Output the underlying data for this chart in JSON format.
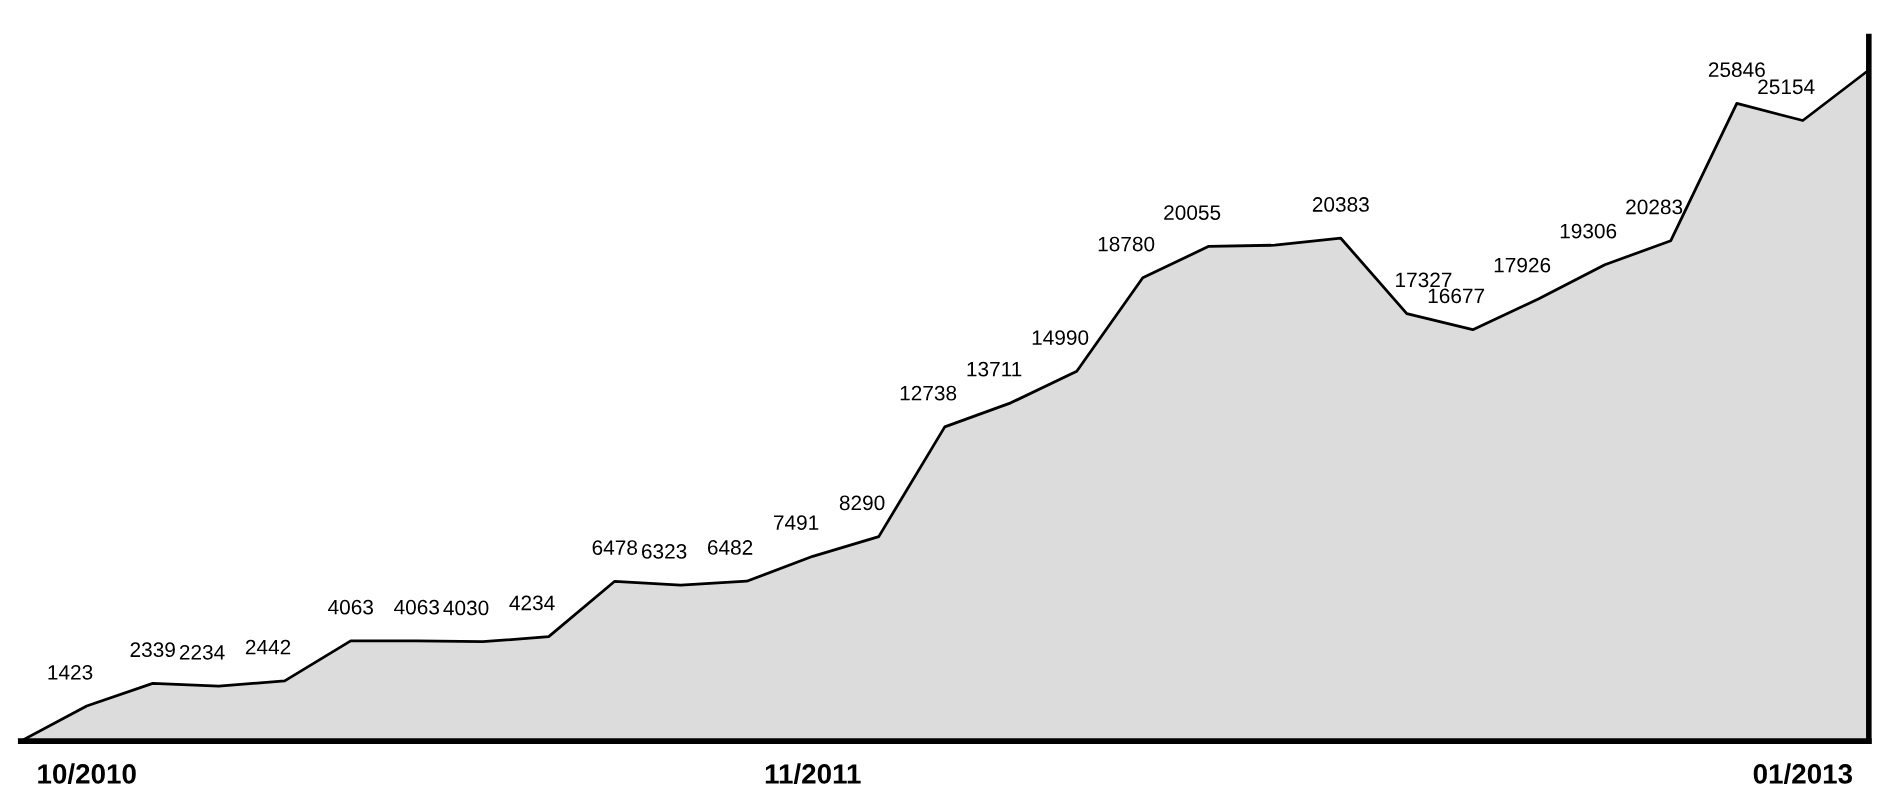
{
  "chart_data": {
    "type": "area",
    "categories": [
      null,
      "10/2010",
      null,
      null,
      null,
      null,
      null,
      null,
      null,
      null,
      null,
      null,
      "11/2011",
      null,
      null,
      null,
      null,
      null,
      null,
      null,
      null,
      null,
      null,
      null,
      null,
      null,
      null,
      "01/2013",
      null
    ],
    "values": [
      0,
      1423,
      2339,
      2234,
      2442,
      4063,
      4063,
      4030,
      4234,
      6478,
      6323,
      6482,
      7491,
      8290,
      12738,
      13711,
      14990,
      18780,
      20055,
      20100,
      20383,
      17327,
      16677,
      17926,
      19306,
      20283,
      25846,
      25154,
      27200
    ],
    "value_labels": [
      null,
      "1423",
      "2339",
      "2234",
      "2442",
      "4063",
      "4063",
      "4030",
      "4234",
      "6478",
      "6323",
      "6482",
      "7491",
      "8290",
      "12738",
      "13711",
      "14990",
      "18780",
      "20055",
      null,
      "20383",
      "17327",
      "16677",
      "17926",
      "19306",
      "20283",
      "25846",
      "25154",
      null
    ],
    "color": "#000000",
    "grid": false,
    "legend": false
  }
}
